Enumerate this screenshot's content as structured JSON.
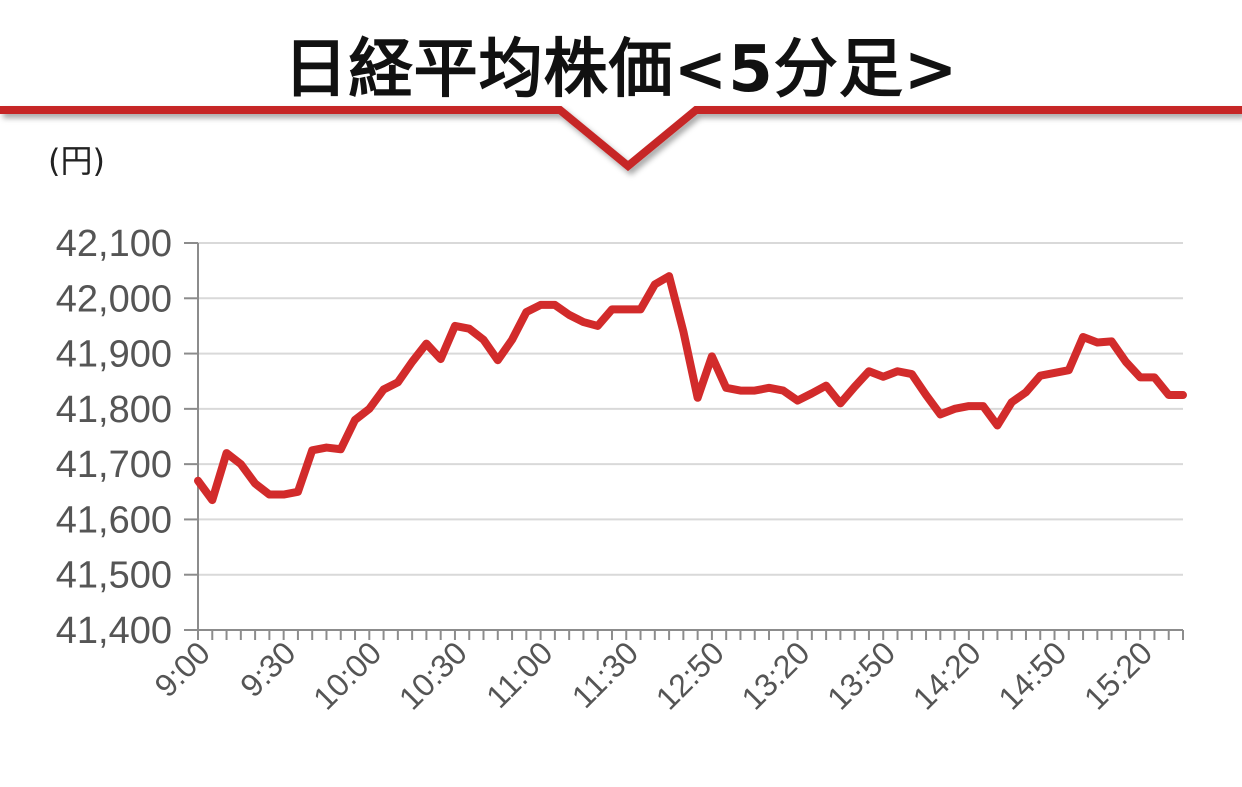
{
  "chart_data": {
    "type": "line",
    "title": "日経平均株価<5分足>",
    "ylabel": "(円)",
    "ylim": [
      41400,
      42100
    ],
    "yticks": [
      41400,
      41500,
      41600,
      41700,
      41800,
      41900,
      42000,
      42100
    ],
    "ytick_labels": [
      "41,400",
      "41,500",
      "41,600",
      "41,700",
      "41,800",
      "41,900",
      "42,000",
      "42,100"
    ],
    "x_tick_labels": [
      "9:00",
      "9:30",
      "10:00",
      "10:30",
      "11:00",
      "11:30",
      "12:50",
      "13:20",
      "13:50",
      "14:20",
      "14:50",
      "15:20"
    ],
    "x_tick_label_every": 6,
    "grid": true,
    "line_color": "#d22b2b",
    "accent_color": "#c62828",
    "series": [
      {
        "values": [
          41670,
          41635,
          41720,
          41700,
          41665,
          41645,
          41645,
          41650,
          41725,
          41730,
          41727,
          41780,
          41800,
          41835,
          41848,
          41885,
          41918,
          41890,
          41950,
          41945,
          41925,
          41888,
          41925,
          41975,
          41988,
          41988,
          41970,
          41957,
          41950,
          41980,
          41980,
          41980,
          42025,
          42040,
          41940,
          41820,
          41895,
          41838,
          41833,
          41833,
          41838,
          41833,
          41815,
          41828,
          41842,
          41810,
          41840,
          41868,
          41858,
          41868,
          41863,
          41825,
          41790,
          41800,
          41805,
          41805,
          41770,
          41812,
          41830,
          41860,
          41865,
          41870,
          41930,
          41920,
          41922,
          41885,
          41857,
          41857,
          41825,
          41825
        ]
      }
    ]
  }
}
